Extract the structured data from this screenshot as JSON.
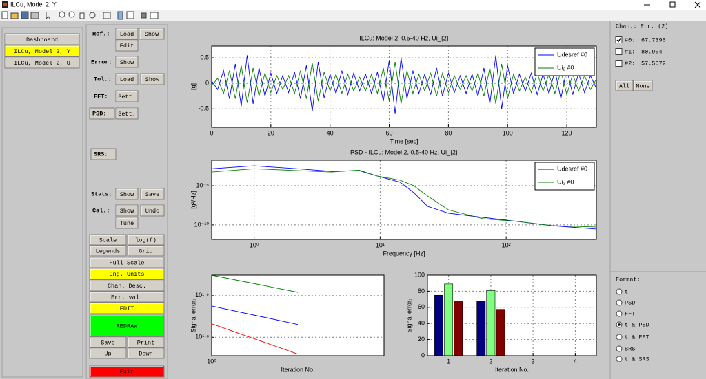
{
  "window": {
    "title": "ILCu, Model 2, Y"
  },
  "sidebar": {
    "items": [
      "Dashboard",
      "ILCu, Model 2, Y",
      "ILCu, Model 2, U"
    ]
  },
  "controls": {
    "labels": [
      "Ref.:",
      "Error:",
      "Tol.:",
      "FFT:",
      "PSD:",
      "SRS:",
      "Stats:",
      "Cal.:"
    ],
    "buttons": [
      "Load",
      "Show",
      "Edit",
      "Show",
      "Load",
      "Show",
      "Sett.",
      "Sett.",
      "Show",
      "Save",
      "Show",
      "Undo",
      "Tune",
      "Scale",
      "log(f)",
      "Legends",
      "Grid",
      "Full Scale",
      "Eng. Units",
      "Chan. Desc.",
      "Err. val.",
      "EDIT",
      "REDRAW",
      "Save",
      "Print",
      "Up",
      "Down",
      "Exit"
    ]
  },
  "channels": {
    "title": "Chan.: Err. (2)",
    "items": [
      {
        "label": "#0:",
        "value": 67.7396,
        "checked": true
      },
      {
        "label": "#1:",
        "value": 80.904,
        "checked": false
      },
      {
        "label": "#2:",
        "value": 57.5072,
        "checked": false
      }
    ],
    "buttons": [
      "All",
      "None"
    ]
  },
  "format": {
    "title": "Format:",
    "options": [
      "t",
      "PSD",
      "FFT",
      "t & PSD",
      "t & FFT",
      "SRS",
      "t & SRS"
    ],
    "selected": 3
  },
  "chart_data": [
    {
      "type": "line",
      "title": "ILCu: Model 2, 0.5-40 Hz, Ui_{2}",
      "x_label": "Time [sec]",
      "y_label": "[g]",
      "x": [
        0,
        2,
        4,
        6,
        8,
        10,
        12,
        14,
        16,
        18,
        20,
        22,
        24,
        26,
        28,
        30,
        32,
        34,
        36,
        38,
        40,
        42,
        44,
        46,
        48,
        50,
        52,
        54,
        56,
        58,
        60,
        62,
        64,
        66,
        68,
        70,
        72,
        74,
        76,
        78,
        80,
        82,
        84,
        86,
        88,
        90,
        92,
        94,
        96,
        98,
        100,
        102,
        104,
        106,
        108,
        110,
        112,
        114,
        116,
        118,
        120,
        122,
        124,
        126,
        128,
        130
      ],
      "series": [
        {
          "name": "Udesref #0",
          "color": "#0000ff",
          "values": [
            0.05,
            -0.12,
            0.25,
            -0.3,
            0.38,
            -0.45,
            0.55,
            -0.4,
            0.3,
            -0.25,
            0.2,
            -0.2,
            0.15,
            -0.18,
            0.22,
            -0.3,
            0.35,
            -0.55,
            0.42,
            -0.28,
            0.18,
            -0.2,
            0.25,
            -0.22,
            0.2,
            -0.15,
            0.18,
            -0.2,
            0.22,
            -0.35,
            0.45,
            -0.6,
            0.5,
            -0.3,
            0.25,
            -0.2,
            0.18,
            -0.22,
            0.3,
            -0.25,
            0.2,
            -0.18,
            0.15,
            -0.2,
            0.18,
            -0.25,
            0.3,
            -0.4,
            0.55,
            -0.5,
            0.35,
            -0.2,
            0.18,
            -0.15,
            0.2,
            -0.22,
            0.18,
            -0.2,
            0.25,
            -0.3,
            0.28,
            -0.22,
            0.2,
            -0.18,
            0.15,
            -0.1
          ]
        },
        {
          "name": "Ui₂ #0",
          "color": "#008000",
          "values": [
            -0.05,
            0.1,
            -0.2,
            0.25,
            -0.3,
            0.35,
            -0.38,
            0.3,
            -0.25,
            0.2,
            -0.18,
            0.15,
            -0.12,
            0.15,
            -0.2,
            0.25,
            -0.3,
            0.4,
            -0.35,
            0.22,
            -0.15,
            0.18,
            -0.2,
            0.18,
            -0.15,
            0.12,
            -0.15,
            0.18,
            -0.2,
            0.3,
            -0.35,
            0.42,
            -0.4,
            0.25,
            -0.2,
            0.18,
            -0.15,
            0.2,
            -0.25,
            0.2,
            -0.18,
            0.15,
            -0.12,
            0.15,
            -0.15,
            0.2,
            -0.25,
            0.3,
            -0.4,
            0.38,
            -0.3,
            0.18,
            -0.15,
            0.12,
            -0.18,
            0.2,
            -0.15,
            0.18,
            -0.2,
            0.25,
            -0.22,
            0.18,
            -0.15,
            0.15,
            -0.12,
            0.08
          ]
        }
      ],
      "xlim": [
        0,
        130
      ],
      "ylim": [
        -0.86,
        0.73
      ],
      "xticks": [
        0,
        20,
        40,
        60,
        80,
        100,
        120
      ],
      "yticks": [
        -0.5,
        0,
        0.5
      ],
      "grid": true,
      "legend": "upper right"
    },
    {
      "type": "line",
      "title": "PSD - ILCu: Model 2, 0.5-40 Hz, Ui_{2}",
      "x_label": "Frequency [Hz]",
      "y_label": "[g²/Hz]",
      "xscale": "log",
      "yscale": "log",
      "x": [
        0.46,
        1,
        2.2,
        4.1,
        6.8,
        9.5,
        14.4,
        18.5,
        23.8,
        34.8,
        65.2,
        122,
        230,
        520
      ],
      "series": [
        {
          "name": "Udesref #0",
          "color": "#0000ff",
          "values": [
            0.0015,
            0.0035,
            0.0015,
            0.00069,
            0.00085,
            0.00017,
            2.8e-05,
            1.3e-06,
            2.3e-08,
            3.1e-09,
            9.1e-10,
            2.8e-10,
            8.1e-11,
            3e-11
          ]
        },
        {
          "name": "Ui₂ #0",
          "color": "#008000",
          "values": [
            0.00056,
            0.0015,
            0.00085,
            0.00056,
            0.001,
            0.00017,
            5e-05,
            1e-05,
            4.8e-07,
            8.5e-09,
            6.2e-10,
            2.8e-10,
            8.1e-11,
            5.5e-11
          ]
        }
      ],
      "xlim": [
        0.46,
        520
      ],
      "ylim": [
        1.4e-12,
        0.018
      ],
      "xticks": [
        {
          "value": 1,
          "label": "10⁰"
        },
        {
          "value": 10,
          "label": "10¹"
        },
        {
          "value": 100,
          "label": "10²"
        }
      ],
      "yticks": [
        {
          "value": 1e-10,
          "label": "10⁻¹⁰"
        },
        {
          "value": 1e-05,
          "label": "10⁻⁵"
        }
      ],
      "grid": true,
      "legend": "upper right"
    },
    {
      "type": "line",
      "x_label": "Iteration No.",
      "y_label": "Signal error₂",
      "xscale": "log",
      "yscale": "log",
      "x": [
        1,
        2
      ],
      "series": [
        {
          "color": "#0000ff",
          "values": [
            75,
            67.7396
          ]
        },
        {
          "color": "#008000",
          "values": [
            89,
            80.904
          ]
        },
        {
          "color": "#ff0000",
          "values": [
            68,
            57.5072
          ]
        }
      ],
      "xlim": [
        1,
        4
      ],
      "ylim": [
        57,
        89
      ],
      "xticks": [
        {
          "value": 1,
          "label": "10⁰"
        }
      ],
      "yticks": [
        {
          "value": 63.1,
          "label": "10¹·⁸"
        },
        {
          "value": 79.43,
          "label": "10¹·⁹"
        }
      ],
      "grid": true
    },
    {
      "type": "bar",
      "x_label": "Iteration No.",
      "y_label": "Signal error₂",
      "x": [
        1,
        2
      ],
      "series": [
        {
          "color": "#000080",
          "values": [
            75,
            67.7396
          ]
        },
        {
          "color": "#80ff80",
          "values": [
            89,
            80.904
          ]
        },
        {
          "color": "#800000",
          "values": [
            68,
            57.5072
          ]
        }
      ],
      "xlim": [
        0.5,
        4.5
      ],
      "ylim": [
        0,
        100
      ],
      "xticks": [
        1,
        2,
        3,
        4
      ],
      "yticks": [
        0,
        20,
        40,
        60,
        80,
        100
      ],
      "grid": true
    }
  ]
}
